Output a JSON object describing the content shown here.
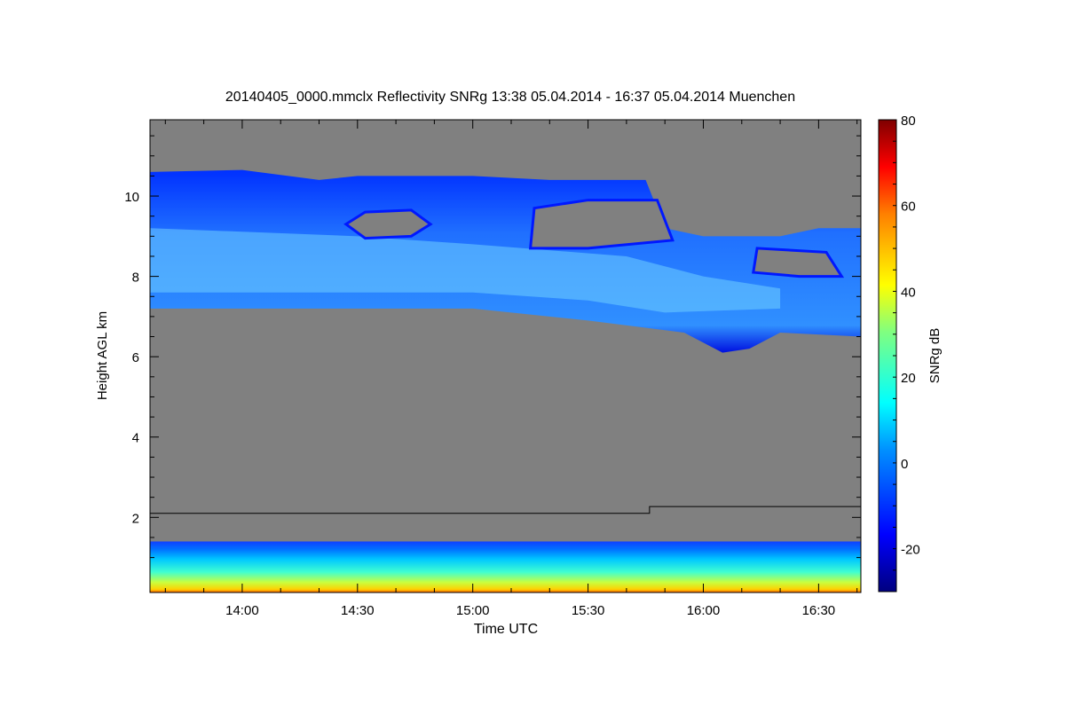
{
  "chart_data": {
    "type": "heatmap",
    "title": "20140405_0000.mmclx Reflectivity SNRg   13:38 05.04.2014 - 16:37 05.04.2014 Muenchen",
    "xlabel": "Time UTC",
    "ylabel": "Height AGL km",
    "colorbar_label": "SNRg dB",
    "xlim": [
      "13:36",
      "16:41"
    ],
    "ylim": [
      0.13,
      11.9
    ],
    "xticks": [
      "14:00",
      "14:30",
      "15:00",
      "15:30",
      "16:00",
      "16:30"
    ],
    "yticks": [
      2,
      4,
      6,
      8,
      10
    ],
    "colorbar_range": [
      -30,
      80
    ],
    "colorbar_ticks": [
      -20,
      0,
      20,
      40,
      60,
      80
    ],
    "colors": {
      "no_signal": "#808080",
      "line": "#000000"
    },
    "cloud_layer": {
      "outline": [
        [
          "13:36",
          10.6
        ],
        [
          "14:00",
          10.65
        ],
        [
          "14:20",
          10.4
        ],
        [
          "14:30",
          10.5
        ],
        [
          "15:00",
          10.5
        ],
        [
          "15:20",
          10.4
        ],
        [
          "15:45",
          10.4
        ],
        [
          "15:50",
          9.2
        ],
        [
          "16:00",
          9.0
        ],
        [
          "16:20",
          9.0
        ],
        [
          "16:30",
          9.2
        ],
        [
          "16:41",
          9.2
        ],
        [
          "16:41",
          6.5
        ],
        [
          "16:20",
          6.6
        ],
        [
          "16:12",
          6.2
        ],
        [
          "16:05",
          6.1
        ],
        [
          "15:55",
          6.6
        ],
        [
          "15:30",
          6.9
        ],
        [
          "15:00",
          7.2
        ],
        [
          "14:00",
          7.2
        ],
        [
          "13:36",
          7.2
        ]
      ],
      "core": [
        [
          "13:36",
          9.2
        ],
        [
          "14:30",
          9.0
        ],
        [
          "15:00",
          8.8
        ],
        [
          "15:40",
          8.5
        ],
        [
          "16:00",
          8.0
        ],
        [
          "16:20",
          7.7
        ],
        [
          "16:20",
          7.2
        ],
        [
          "15:50",
          7.1
        ],
        [
          "15:30",
          7.4
        ],
        [
          "15:00",
          7.6
        ],
        [
          "14:00",
          7.6
        ],
        [
          "13:36",
          7.6
        ]
      ],
      "gaps": [
        [
          [
            "14:27",
            9.3
          ],
          [
            "14:32",
            9.6
          ],
          [
            "14:44",
            9.65
          ],
          [
            "14:49",
            9.3
          ],
          [
            "14:44",
            9.0
          ],
          [
            "14:32",
            8.95
          ]
        ],
        [
          [
            "15:15",
            8.7
          ],
          [
            "15:16",
            9.7
          ],
          [
            "15:30",
            9.9
          ],
          [
            "15:48",
            9.9
          ],
          [
            "15:52",
            8.9
          ],
          [
            "15:30",
            8.7
          ]
        ],
        [
          [
            "16:13",
            8.1
          ],
          [
            "16:14",
            8.7
          ],
          [
            "16:32",
            8.6
          ],
          [
            "16:36",
            8.0
          ],
          [
            "16:25",
            8.0
          ]
        ]
      ]
    },
    "boundary_line": [
      [
        "13:36",
        2.1
      ],
      [
        "15:46",
        2.1
      ],
      [
        "15:46",
        2.27
      ],
      [
        "16:41",
        2.27
      ]
    ],
    "ground_clutter_top_km": 1.4
  }
}
